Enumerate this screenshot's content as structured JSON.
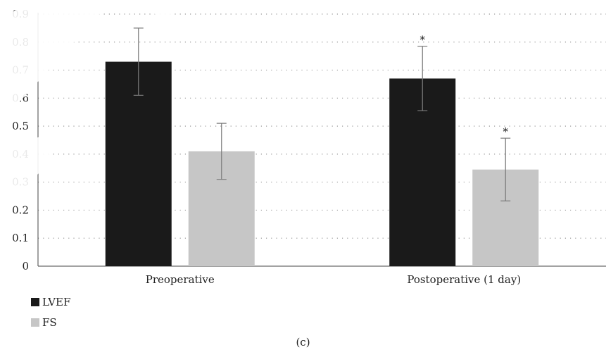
{
  "chart_data": {
    "type": "bar",
    "categories": [
      "Preoperative",
      "Postoperative (1 day)"
    ],
    "series": [
      {
        "name": "LVEF",
        "values": [
          0.73,
          0.67
        ],
        "errors": [
          0.12,
          0.115
        ],
        "significance": [
          "",
          "*"
        ]
      },
      {
        "name": "FS",
        "values": [
          0.41,
          0.345
        ],
        "errors": [
          0.1,
          0.112
        ],
        "significance": [
          "",
          "*"
        ]
      }
    ],
    "ylim": [
      0,
      0.9
    ],
    "yticks": [
      "0",
      "0.1",
      "0.2",
      "0.3",
      "0.4",
      "0.5",
      "0.6",
      "0.7",
      "0.8",
      "0.9"
    ],
    "grid": true,
    "legend_position": "bottom-left",
    "colors": {
      "LVEF": "#1a1a1a",
      "FS": "#c6c6c6",
      "error_bar": "#7a7a7a",
      "grid": "#9a9a9a"
    }
  },
  "caption": "(c)"
}
